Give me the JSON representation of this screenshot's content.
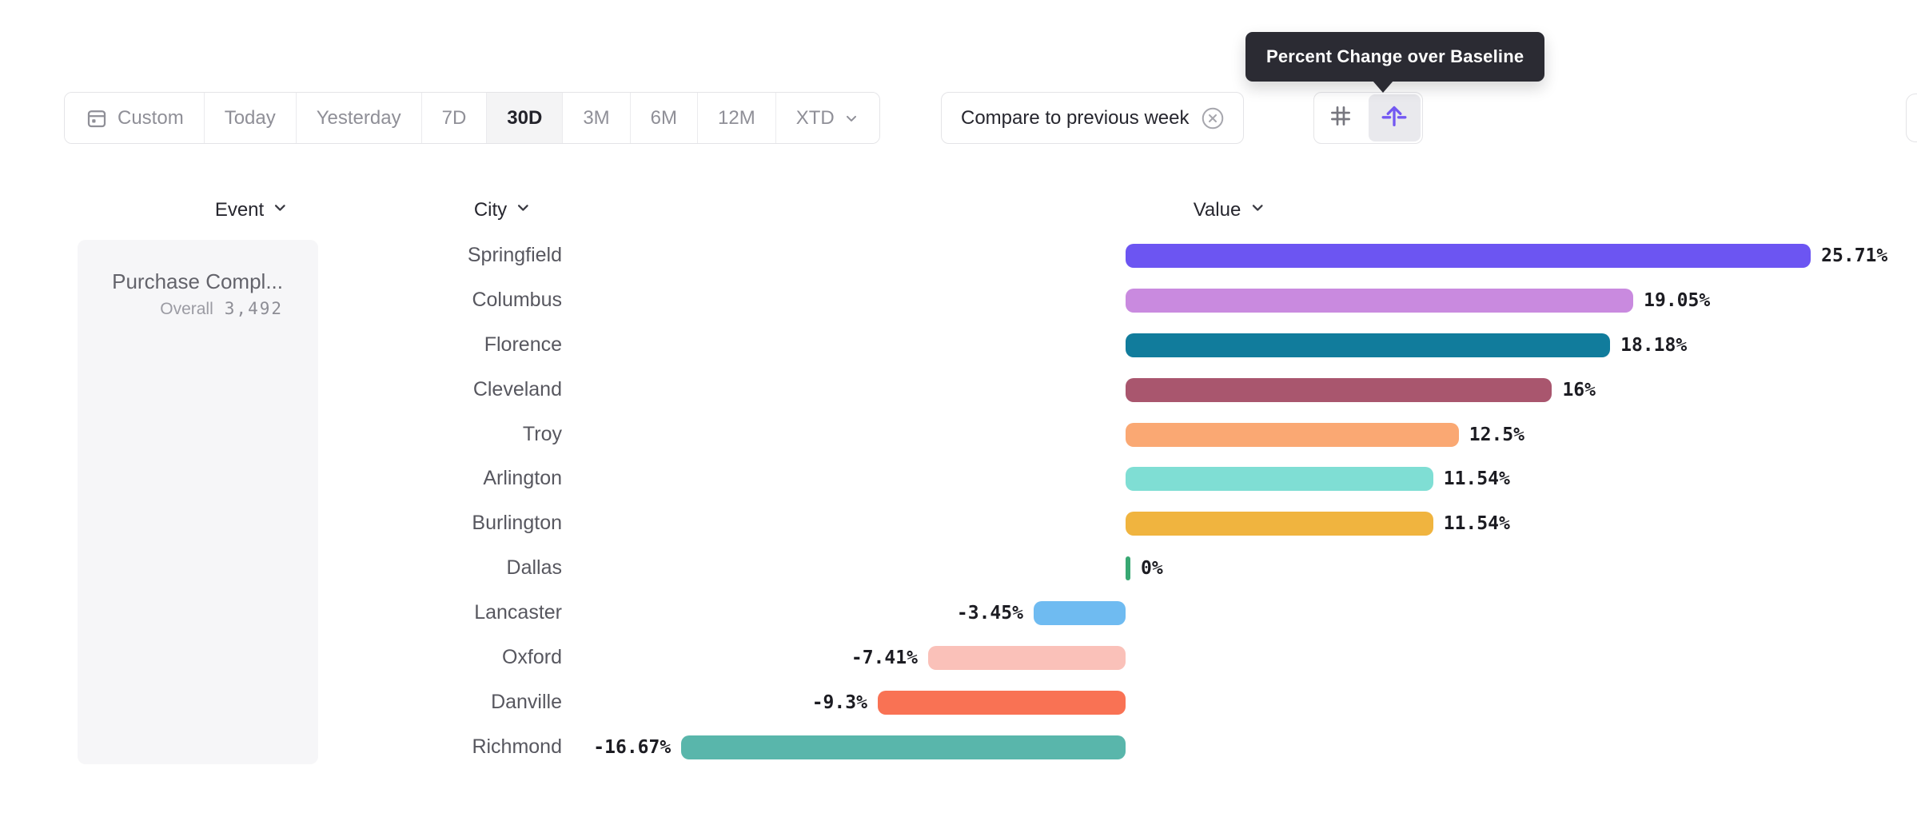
{
  "tooltip": {
    "text": "Percent Change over Baseline"
  },
  "toolbar": {
    "date_ranges": [
      {
        "label": "Custom",
        "icon": "calendar-icon",
        "selected": false
      },
      {
        "label": "Today",
        "selected": false
      },
      {
        "label": "Yesterday",
        "selected": false
      },
      {
        "label": "7D",
        "selected": false
      },
      {
        "label": "30D",
        "selected": true
      },
      {
        "label": "3M",
        "selected": false
      },
      {
        "label": "6M",
        "selected": false
      },
      {
        "label": "12M",
        "selected": false
      },
      {
        "label": "XTD",
        "has_chevron": true,
        "selected": false
      }
    ],
    "compare_chip": {
      "label": "Compare to previous week",
      "icon": "close-circle-icon"
    },
    "view_toggle": {
      "options": [
        {
          "icon": "grid-number-icon",
          "selected": false
        },
        {
          "icon": "percent-baseline-icon",
          "selected": true
        }
      ]
    }
  },
  "columns": [
    {
      "label": "Event"
    },
    {
      "label": "City"
    },
    {
      "label": "Value"
    }
  ],
  "event_card": {
    "title": "Purchase Compl...",
    "overall_label": "Overall",
    "overall_value": "3,492"
  },
  "chart_data": {
    "type": "bar",
    "orientation": "horizontal",
    "title": "Percent Change over Baseline",
    "value_unit": "percent",
    "categories": [
      "Springfield",
      "Columbus",
      "Florence",
      "Cleveland",
      "Troy",
      "Arlington",
      "Burlington",
      "Dallas",
      "Lancaster",
      "Oxford",
      "Danville",
      "Richmond"
    ],
    "values": [
      25.71,
      19.05,
      18.18,
      16,
      12.5,
      11.54,
      11.54,
      0,
      -3.45,
      -7.41,
      -9.3,
      -16.67
    ],
    "labels": [
      "25.71%",
      "19.05%",
      "18.18%",
      "16%",
      "12.5%",
      "11.54%",
      "11.54%",
      "0%",
      "-3.45%",
      "-7.41%",
      "-9.3%",
      "-16.67%"
    ],
    "colors": [
      "#6C55F2",
      "#C98ADF",
      "#117C9C",
      "#A9566E",
      "#FAA873",
      "#7FDED4",
      "#F0B43F",
      "#38A873",
      "#6FBBF1",
      "#FAC1B9",
      "#F97254",
      "#59B6AB"
    ],
    "xlim": [
      -16.67,
      25.71
    ],
    "grid": false,
    "legend": false
  },
  "ui_colors": {
    "tooltip_bg": "#2b2b33",
    "accent_purple": "#7358f2",
    "border": "#e4e4e7",
    "selected_segment_bg": "#f4f4f5",
    "zero_tick_green": "#38A873"
  },
  "icons": [
    "calendar-icon",
    "chevron-down-icon",
    "close-circle-icon",
    "grid-number-icon",
    "percent-baseline-icon"
  ]
}
